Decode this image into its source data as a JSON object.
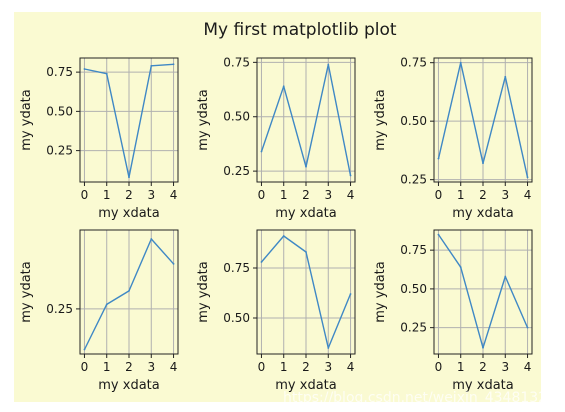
{
  "figure": {
    "title": "My first matplotlib plot",
    "facecolor": "#fafad2",
    "line_color": "#3f88c5",
    "grid_color": "#b0b0b0",
    "watermark": "https://blog.csdn.net/weixin_43481320"
  },
  "chart_data": [
    {
      "type": "line",
      "x": [
        0,
        1,
        2,
        3,
        4
      ],
      "values": [
        0.77,
        0.74,
        0.08,
        0.79,
        0.8
      ],
      "xlabel": "my xdata",
      "ylabel": "my ydata",
      "ylim": [
        0.05,
        0.84
      ],
      "xlim": [
        -0.2,
        4.2
      ],
      "xticks": [
        "0",
        "1",
        "2",
        "3",
        "4"
      ],
      "yticks": [
        "0.25",
        "0.50",
        "0.75"
      ],
      "grid": true
    },
    {
      "type": "line",
      "x": [
        0,
        1,
        2,
        3,
        4
      ],
      "values": [
        0.34,
        0.64,
        0.27,
        0.74,
        0.23
      ],
      "xlabel": "my xdata",
      "ylabel": "my ydata",
      "ylim": [
        0.2,
        0.77
      ],
      "xlim": [
        -0.2,
        4.2
      ],
      "xticks": [
        "0",
        "1",
        "2",
        "3",
        "4"
      ],
      "yticks": [
        "0.25",
        "0.50",
        "0.75"
      ],
      "grid": true
    },
    {
      "type": "line",
      "x": [
        0,
        1,
        2,
        3,
        4
      ],
      "values": [
        0.34,
        0.75,
        0.32,
        0.69,
        0.26
      ],
      "xlabel": "my xdata",
      "ylabel": "my ydata",
      "ylim": [
        0.24,
        0.77
      ],
      "xlim": [
        -0.2,
        4.2
      ],
      "xticks": [
        "0",
        "1",
        "2",
        "3",
        "4"
      ],
      "yticks": [
        "0.25",
        "0.50",
        "0.75"
      ],
      "grid": true
    },
    {
      "type": "line",
      "x": [
        0,
        1,
        2,
        3,
        4
      ],
      "values": [
        0.07,
        0.27,
        0.33,
        0.56,
        0.45
      ],
      "xlabel": "my xdata",
      "ylabel": "my ydata",
      "ylim": [
        0.05,
        0.6
      ],
      "xlim": [
        -0.2,
        4.2
      ],
      "xticks": [
        "0",
        "1",
        "2",
        "3",
        "4"
      ],
      "yticks": [
        "0.25"
      ],
      "grid": true
    },
    {
      "type": "line",
      "x": [
        0,
        1,
        2,
        3,
        4
      ],
      "values": [
        0.78,
        0.91,
        0.83,
        0.35,
        0.62
      ],
      "xlabel": "my xdata",
      "ylabel": "my ydata",
      "ylim": [
        0.32,
        0.94
      ],
      "xlim": [
        -0.2,
        4.2
      ],
      "xticks": [
        "0",
        "1",
        "2",
        "3",
        "4"
      ],
      "yticks": [
        "0.50",
        "0.75"
      ],
      "grid": true
    },
    {
      "type": "line",
      "x": [
        0,
        1,
        2,
        3,
        4
      ],
      "values": [
        0.85,
        0.64,
        0.12,
        0.58,
        0.25
      ],
      "xlabel": "my xdata",
      "ylabel": "my ydata",
      "ylim": [
        0.08,
        0.88
      ],
      "xlim": [
        -0.2,
        4.2
      ],
      "xticks": [
        "0",
        "1",
        "2",
        "3",
        "4"
      ],
      "yticks": [
        "0.25",
        "0.50",
        "0.75"
      ],
      "grid": true
    }
  ]
}
